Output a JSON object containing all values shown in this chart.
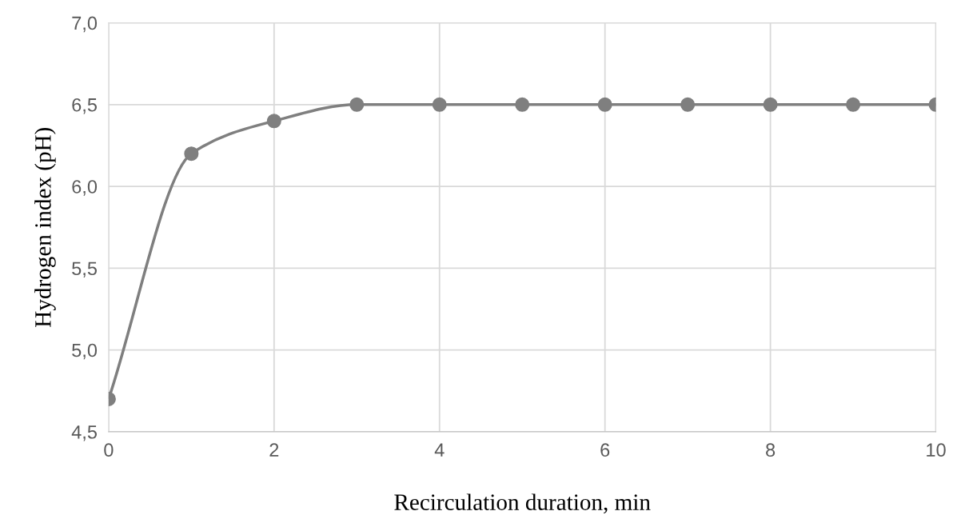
{
  "chart_data": {
    "type": "line",
    "xlabel": "Recirculation duration, min",
    "ylabel": "Hydrogen index (pH)",
    "x": [
      0,
      1,
      2,
      3,
      4,
      5,
      6,
      7,
      8,
      9,
      10
    ],
    "series": [
      {
        "color": "#7f7f7f",
        "values": [
          4.7,
          6.2,
          6.4,
          6.5,
          6.5,
          6.5,
          6.5,
          6.5,
          6.5,
          6.5,
          6.5
        ]
      }
    ],
    "xlim": [
      0,
      10
    ],
    "xticks": [
      0,
      2,
      4,
      6,
      8,
      10
    ],
    "ylim": [
      4.5,
      7.0
    ],
    "yticks": [
      {
        "value": 4.5,
        "label": "4,5"
      },
      {
        "value": 5.0,
        "label": "5,0"
      },
      {
        "value": 5.5,
        "label": "5,5"
      },
      {
        "value": 6.0,
        "label": "6,0"
      },
      {
        "value": 6.5,
        "label": "6,5"
      },
      {
        "value": 7.0,
        "label": "7,0"
      }
    ],
    "grid": true,
    "marker": "circle",
    "line_style": "solid",
    "legend": false
  }
}
